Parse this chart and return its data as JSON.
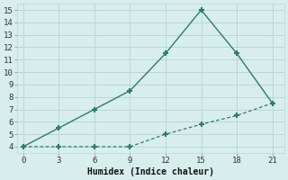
{
  "xlabel": "Humidex (Indice chaleur)",
  "x_upper": [
    0,
    3,
    6,
    9,
    12,
    15,
    18,
    21
  ],
  "y_upper": [
    4,
    5.5,
    7.0,
    8.5,
    11.5,
    15,
    11.5,
    7.5
  ],
  "x_lower": [
    0,
    3,
    6,
    9,
    12,
    15,
    18,
    21
  ],
  "y_lower": [
    4,
    4,
    4,
    4,
    5.0,
    5.8,
    6.5,
    7.5
  ],
  "xlim": [
    -0.5,
    22
  ],
  "ylim": [
    3.5,
    15.5
  ],
  "xticks": [
    0,
    3,
    6,
    9,
    12,
    15,
    18,
    21
  ],
  "yticks": [
    4,
    5,
    6,
    7,
    8,
    9,
    10,
    11,
    12,
    13,
    14,
    15
  ],
  "line_color": "#2d7a6e",
  "bg_color": "#d8eeec",
  "grid_color": "#b8d8d4"
}
